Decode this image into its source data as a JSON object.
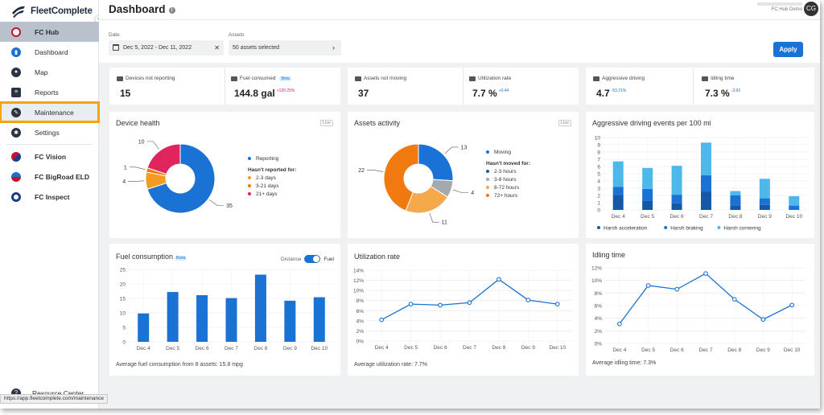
{
  "app": {
    "brand": "FleetComplete"
  },
  "sidebar": {
    "hub": "FC Hub",
    "items": [
      {
        "label": "Dashboard",
        "icon": "dashboard-icon"
      },
      {
        "label": "Map",
        "icon": "map-pin-icon"
      },
      {
        "label": "Reports",
        "icon": "reports-icon"
      },
      {
        "label": "Maintenance",
        "icon": "wrench-icon"
      },
      {
        "label": "Settings",
        "icon": "gear-icon"
      }
    ],
    "products": [
      "FC Vision",
      "FC BigRoad ELD",
      "FC Inspect"
    ],
    "resource_center": "Resource Center"
  },
  "status_url": "https://app.fleetcomplete.com/maintenance",
  "header": {
    "title": "Dashboard",
    "user_sub": "FC Hub Demo",
    "avatar": "CG"
  },
  "filters": {
    "date_label": "Date",
    "date_value": "Dec 5, 2022 - Dec 11, 2022",
    "assets_label": "Assets",
    "assets_value": "50 assets selected",
    "apply": "Apply"
  },
  "kpis": {
    "not_reporting": {
      "label": "Devices not reporting",
      "value": "15"
    },
    "fuel": {
      "label": "Fuel consumed",
      "badge": "Beta",
      "value": "144.8 gal",
      "delta": "+130.25%",
      "delta_color": "#e0245e"
    },
    "not_moving": {
      "label": "Assets not moving",
      "value": "37"
    },
    "utilization": {
      "label": "Utilization rate",
      "value": "7.7 %",
      "delta": "+0.44",
      "delta_color": "#1a72d4"
    },
    "aggressive": {
      "label": "Aggressive driving",
      "value": "4.7",
      "delta": "-53.21%",
      "delta_color": "#1a72d4"
    },
    "idling": {
      "label": "Idling time",
      "value": "7.3 %",
      "delta": "-3.93",
      "delta_color": "#1a72d4"
    }
  },
  "device_health": {
    "title": "Device health",
    "badge": "Live",
    "legend": {
      "reporting": "Reporting",
      "header": "Hasn't reported for:",
      "items": [
        "2-3 days",
        "3-21 days",
        "21+ days"
      ]
    },
    "chart_data": {
      "type": "pie",
      "labels": [
        "Reporting",
        "2-3 days",
        "3-21 days",
        "21+ days"
      ],
      "values": [
        35,
        4,
        1,
        10
      ],
      "colors": [
        "#1a72d4",
        "#f59a23",
        "#f07a10",
        "#e0245e"
      ]
    }
  },
  "assets_activity": {
    "title": "Assets activity",
    "badge": "Live",
    "legend": {
      "moving": "Moving",
      "header": "Hasn't moved for:",
      "items": [
        "2-3 hours",
        "3-8 hours",
        "8-72 hours",
        "72+ hours"
      ]
    },
    "chart_data": {
      "type": "pie",
      "labels": [
        "Moving",
        "2-3 hours",
        "3-8 hours",
        "8-72 hours",
        "72+ hours"
      ],
      "values": [
        13,
        0,
        4,
        11,
        22
      ],
      "colors": [
        "#1a72d4",
        "#1558a8",
        "#a4a9ae",
        "#f5a94a",
        "#f07a10"
      ]
    }
  },
  "aggressive_chart": {
    "title": "Aggressive driving events per 100 mi",
    "chart_data": {
      "type": "bar",
      "stacked": true,
      "categories": [
        "Dec 4",
        "Dec 5",
        "Dec 6",
        "Dec 7",
        "Dec 8",
        "Dec 9",
        "Dec 10"
      ],
      "ylim": [
        0,
        10
      ],
      "yticks": [
        0,
        1,
        2,
        3,
        4,
        5,
        6,
        7,
        8,
        9,
        10
      ],
      "series": [
        {
          "name": "Harsh acceleration",
          "values": [
            2.0,
            1.3,
            0.9,
            2.5,
            0.6,
            0.7,
            0
          ],
          "color": "#1558a8"
        },
        {
          "name": "Harsh braking",
          "values": [
            1.2,
            1.6,
            1.2,
            2.3,
            1.4,
            0.9,
            0.6
          ],
          "color": "#1a72d4"
        },
        {
          "name": "Harsh cornering",
          "values": [
            3.5,
            2.9,
            4.0,
            4.5,
            0.6,
            2.7,
            1.3
          ],
          "color": "#4fb8ea"
        }
      ]
    }
  },
  "fuel_chart": {
    "title": "Fuel consumption",
    "badge": "Beta",
    "toggle_left": "Distance",
    "toggle_right": "Fuel",
    "footnote": "Average fuel consumption from 8 assets: 15.8 mpg",
    "chart_data": {
      "type": "bar",
      "categories": [
        "Dec 4",
        "Dec 5",
        "Dec 6",
        "Dec 7",
        "Dec 8",
        "Dec 9",
        "Dec 10"
      ],
      "values": [
        9.8,
        17.2,
        16.1,
        15.1,
        23.2,
        14.2,
        15.4
      ],
      "ylim": [
        0,
        25
      ],
      "yticks": [
        0,
        5,
        10,
        15,
        20,
        25
      ],
      "color": "#1a72d4"
    }
  },
  "util_chart": {
    "title": "Utilization rate",
    "footnote": "Average utilization rate: 7.7%",
    "chart_data": {
      "type": "line",
      "categories": [
        "Dec 4",
        "Dec 5",
        "Dec 6",
        "Dec 7",
        "Dec 8",
        "Dec 9",
        "Dec 10"
      ],
      "values": [
        4.2,
        7.3,
        7.1,
        7.6,
        12.2,
        8.1,
        7.3
      ],
      "ylim": [
        0,
        14
      ],
      "yticks": [
        0,
        2,
        4,
        6,
        8,
        10,
        12,
        14
      ],
      "unit": "%",
      "color": "#1a72d4"
    }
  },
  "idling_chart": {
    "title": "Idling time",
    "footnote": "Average idling time: 7.3%",
    "chart_data": {
      "type": "line",
      "categories": [
        "Dec 4",
        "Dec 5",
        "Dec 6",
        "Dec 7",
        "Dec 8",
        "Dec 9",
        "Dec 10"
      ],
      "values": [
        3.1,
        9.2,
        8.6,
        11.1,
        7.0,
        3.8,
        6.1
      ],
      "ylim": [
        0,
        12
      ],
      "yticks": [
        0,
        2,
        4,
        6,
        8,
        10,
        12
      ],
      "unit": "%",
      "color": "#1a72d4"
    }
  }
}
